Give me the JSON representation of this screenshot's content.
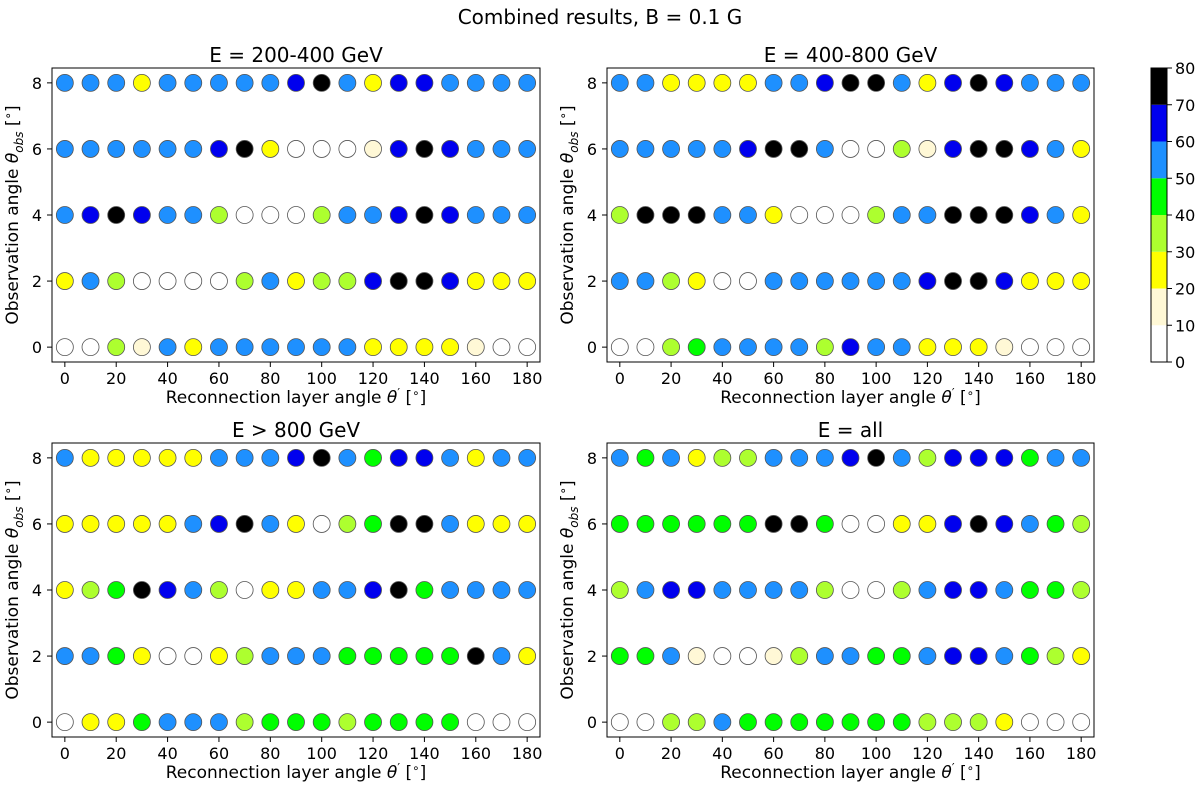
{
  "suptitle": "Combined results, B = 0.1 G",
  "chart_data": [
    {
      "type": "scatter",
      "title": "E = 200-400 GeV",
      "xlabel": "Reconnection layer angle θ′ [°]",
      "ylabel": "Observation angle θobs [°]",
      "x": [
        0,
        10,
        20,
        30,
        40,
        50,
        60,
        70,
        80,
        90,
        100,
        110,
        120,
        130,
        140,
        150,
        160,
        170,
        180
      ],
      "y": [
        0,
        2,
        4,
        6,
        8
      ],
      "xlim": [
        -5,
        185
      ],
      "ylim": [
        -0.45,
        8.45
      ],
      "xticks": [
        0,
        20,
        40,
        60,
        80,
        100,
        120,
        140,
        160,
        180
      ],
      "yticks": [
        0,
        2,
        4,
        6,
        8
      ],
      "grid": false,
      "values": [
        [
          0,
          0,
          35,
          15,
          55,
          25,
          55,
          55,
          55,
          55,
          55,
          55,
          25,
          25,
          25,
          25,
          15,
          0,
          0
        ],
        [
          25,
          55,
          35,
          0,
          0,
          0,
          0,
          35,
          55,
          25,
          35,
          35,
          65,
          75,
          75,
          65,
          25,
          25,
          25
        ],
        [
          55,
          65,
          75,
          65,
          55,
          55,
          35,
          0,
          0,
          0,
          35,
          55,
          55,
          65,
          75,
          65,
          55,
          55,
          55
        ],
        [
          55,
          55,
          55,
          55,
          55,
          55,
          65,
          75,
          25,
          0,
          0,
          0,
          15,
          65,
          75,
          65,
          55,
          55,
          55
        ],
        [
          55,
          55,
          55,
          25,
          55,
          55,
          55,
          55,
          55,
          65,
          75,
          55,
          25,
          65,
          65,
          55,
          55,
          55,
          55
        ]
      ]
    },
    {
      "type": "scatter",
      "title": "E = 400-800 GeV",
      "xlabel": "Reconnection layer angle θ′ [°]",
      "ylabel": "Observation angle θobs [°]",
      "x": [
        0,
        10,
        20,
        30,
        40,
        50,
        60,
        70,
        80,
        90,
        100,
        110,
        120,
        130,
        140,
        150,
        160,
        170,
        180
      ],
      "y": [
        0,
        2,
        4,
        6,
        8
      ],
      "xlim": [
        -5,
        185
      ],
      "ylim": [
        -0.45,
        8.45
      ],
      "xticks": [
        0,
        20,
        40,
        60,
        80,
        100,
        120,
        140,
        160,
        180
      ],
      "yticks": [
        0,
        2,
        4,
        6,
        8
      ],
      "grid": false,
      "values": [
        [
          0,
          0,
          35,
          45,
          55,
          55,
          55,
          55,
          35,
          65,
          55,
          55,
          25,
          25,
          25,
          15,
          0,
          0,
          0
        ],
        [
          55,
          55,
          35,
          25,
          0,
          0,
          55,
          55,
          55,
          55,
          55,
          55,
          65,
          75,
          75,
          65,
          25,
          25,
          25
        ],
        [
          35,
          75,
          75,
          75,
          55,
          55,
          25,
          0,
          0,
          0,
          35,
          55,
          55,
          75,
          75,
          75,
          65,
          55,
          25
        ],
        [
          55,
          55,
          55,
          55,
          55,
          65,
          75,
          75,
          55,
          0,
          0,
          35,
          15,
          65,
          75,
          75,
          65,
          55,
          25
        ],
        [
          55,
          55,
          25,
          25,
          25,
          25,
          55,
          55,
          65,
          75,
          75,
          55,
          25,
          65,
          75,
          65,
          55,
          55,
          55
        ]
      ]
    },
    {
      "type": "scatter",
      "title": "E > 800 GeV",
      "xlabel": "Reconnection layer angle θ′ [°]",
      "ylabel": "Observation angle θobs [°]",
      "x": [
        0,
        10,
        20,
        30,
        40,
        50,
        60,
        70,
        80,
        90,
        100,
        110,
        120,
        130,
        140,
        150,
        160,
        170,
        180
      ],
      "y": [
        0,
        2,
        4,
        6,
        8
      ],
      "xlim": [
        -5,
        185
      ],
      "ylim": [
        -0.45,
        8.45
      ],
      "xticks": [
        0,
        20,
        40,
        60,
        80,
        100,
        120,
        140,
        160,
        180
      ],
      "yticks": [
        0,
        2,
        4,
        6,
        8
      ],
      "grid": false,
      "values": [
        [
          0,
          25,
          25,
          45,
          55,
          55,
          55,
          35,
          45,
          45,
          45,
          35,
          45,
          45,
          45,
          45,
          0,
          0,
          0
        ],
        [
          55,
          55,
          45,
          25,
          0,
          0,
          25,
          35,
          55,
          55,
          55,
          45,
          45,
          45,
          45,
          45,
          75,
          55,
          25
        ],
        [
          25,
          35,
          45,
          75,
          65,
          55,
          35,
          0,
          25,
          25,
          55,
          55,
          65,
          75,
          45,
          55,
          55,
          55,
          55
        ],
        [
          25,
          25,
          25,
          25,
          25,
          55,
          65,
          75,
          55,
          25,
          0,
          35,
          45,
          75,
          75,
          55,
          25,
          25,
          25
        ],
        [
          55,
          25,
          25,
          25,
          25,
          25,
          55,
          55,
          55,
          65,
          75,
          55,
          45,
          65,
          65,
          55,
          25,
          55,
          55
        ]
      ]
    },
    {
      "type": "scatter",
      "title": "E = all",
      "xlabel": "Reconnection layer angle θ′ [°]",
      "ylabel": "Observation angle θobs [°]",
      "x": [
        0,
        10,
        20,
        30,
        40,
        50,
        60,
        70,
        80,
        90,
        100,
        110,
        120,
        130,
        140,
        150,
        160,
        170,
        180
      ],
      "y": [
        0,
        2,
        4,
        6,
        8
      ],
      "xlim": [
        -5,
        185
      ],
      "ylim": [
        -0.45,
        8.45
      ],
      "xticks": [
        0,
        20,
        40,
        60,
        80,
        100,
        120,
        140,
        160,
        180
      ],
      "yticks": [
        0,
        2,
        4,
        6,
        8
      ],
      "grid": false,
      "values": [
        [
          0,
          0,
          35,
          35,
          55,
          45,
          45,
          45,
          45,
          45,
          45,
          45,
          35,
          35,
          35,
          25,
          0,
          0,
          0
        ],
        [
          45,
          45,
          55,
          15,
          0,
          0,
          15,
          35,
          55,
          55,
          45,
          45,
          55,
          65,
          65,
          55,
          45,
          35,
          25
        ],
        [
          35,
          55,
          65,
          65,
          55,
          55,
          55,
          55,
          35,
          0,
          0,
          35,
          55,
          65,
          65,
          55,
          45,
          45,
          35
        ],
        [
          45,
          45,
          45,
          45,
          45,
          45,
          75,
          75,
          45,
          0,
          0,
          25,
          25,
          65,
          75,
          65,
          55,
          45,
          35
        ],
        [
          55,
          45,
          55,
          25,
          35,
          35,
          55,
          55,
          55,
          65,
          75,
          55,
          35,
          65,
          65,
          65,
          45,
          55,
          55
        ]
      ]
    }
  ],
  "colorbar": {
    "boundaries": [
      0,
      10,
      20,
      30,
      40,
      50,
      60,
      70,
      80
    ],
    "tick_labels": [
      "0",
      "10",
      "20",
      "30",
      "40",
      "50",
      "60",
      "70",
      "80"
    ],
    "colors": [
      "#ffffff",
      "#fff8d6",
      "#ffff00",
      "#adff2f",
      "#00ff00",
      "#1e90ff",
      "#0000ee",
      "#000000"
    ]
  }
}
